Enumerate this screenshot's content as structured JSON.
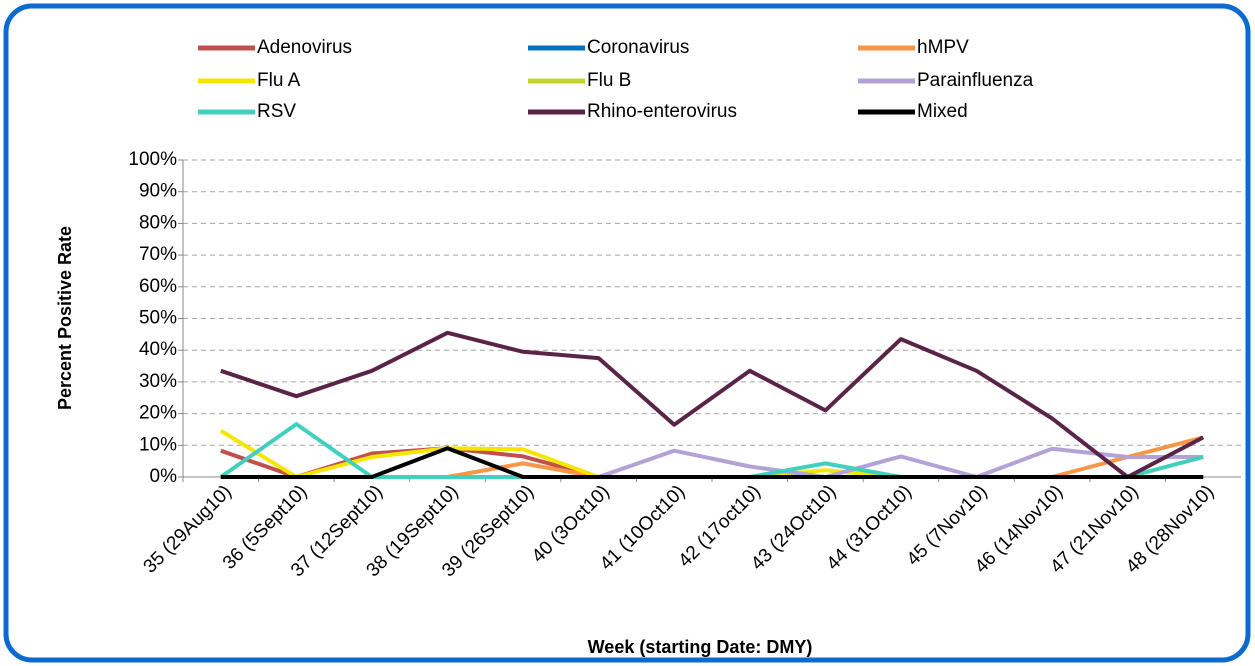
{
  "chart_data": {
    "type": "line",
    "x_label": "Week (starting Date: DMY)",
    "y_label": "Percent Positive Rate",
    "categories": [
      "35 (29Aug10)",
      "36 (5Sept10)",
      "37 (12Sept10)",
      "38 (19Sept10)",
      "39 (26Sept10)",
      "40 (3Oct10)",
      "41 (10Oct10)",
      "42 (17oct10)",
      "43 (24Oct10)",
      "44 (31Oct10)",
      "45 (7Nov10)",
      "46 (14Nov10)",
      "47 (21Nov10)",
      "48 (28Nov10)"
    ],
    "ylim": [
      0,
      100
    ],
    "yticks": [
      {
        "value": 0,
        "label": "0%"
      },
      {
        "value": 10,
        "label": "10%"
      },
      {
        "value": 20,
        "label": "20%"
      },
      {
        "value": 30,
        "label": "30%"
      },
      {
        "value": 40,
        "label": "40%"
      },
      {
        "value": 50,
        "label": "50%"
      },
      {
        "value": 60,
        "label": "60%"
      },
      {
        "value": 70,
        "label": "70%"
      },
      {
        "value": 80,
        "label": "80%"
      },
      {
        "value": 90,
        "label": "90%"
      },
      {
        "value": 100,
        "label": "100%"
      }
    ],
    "grid": true,
    "legend": "top",
    "series": [
      {
        "name": "Adenovirus",
        "color": "#c0504d",
        "values": [
          8.3,
          0,
          7.4,
          9.1,
          6.5,
          0,
          0,
          0,
          0,
          0,
          0,
          0,
          0,
          0
        ]
      },
      {
        "name": "Coronavirus",
        "color": "#0070c0",
        "values": [
          0,
          0,
          0,
          0,
          0,
          0,
          0,
          0,
          0,
          0,
          0,
          0,
          0,
          0
        ]
      },
      {
        "name": "hMPV",
        "color": "#f79646",
        "values": [
          0,
          0,
          0,
          0,
          4.3,
          0,
          0,
          0,
          0,
          0,
          0,
          0,
          6.3,
          12.5
        ]
      },
      {
        "name": "Flu A",
        "color": "#f5e600",
        "values": [
          14.6,
          0,
          6.3,
          9.1,
          8.7,
          0,
          0,
          0,
          2.1,
          0,
          0,
          0,
          0,
          6.3
        ]
      },
      {
        "name": "Flu B",
        "color": "#c4d42b",
        "values": [
          0,
          0,
          0,
          0,
          0,
          0,
          0,
          0,
          0,
          0,
          0,
          0,
          0,
          0
        ]
      },
      {
        "name": "Parainfluenza",
        "color": "#b3a2d8",
        "values": [
          0,
          0,
          0,
          0,
          0,
          0,
          8.3,
          3.3,
          0,
          6.5,
          0,
          8.9,
          6.3,
          6.3
        ]
      },
      {
        "name": "RSV",
        "color": "#40d0c0",
        "values": [
          0,
          16.7,
          0,
          0,
          0,
          0,
          0,
          0,
          4.3,
          0,
          0,
          0,
          0,
          6.3
        ]
      },
      {
        "name": "Rhino-enterovirus",
        "color": "#5a2448",
        "values": [
          33.5,
          25.5,
          33.5,
          45.5,
          39.5,
          37.5,
          16.5,
          33.5,
          21,
          43.5,
          33.5,
          18.5,
          0,
          12.5
        ]
      },
      {
        "name": "Mixed",
        "color": "#000000",
        "values": [
          0,
          0,
          0,
          9.1,
          0,
          0,
          0,
          0,
          0,
          0,
          0,
          0,
          0,
          0
        ]
      }
    ]
  }
}
